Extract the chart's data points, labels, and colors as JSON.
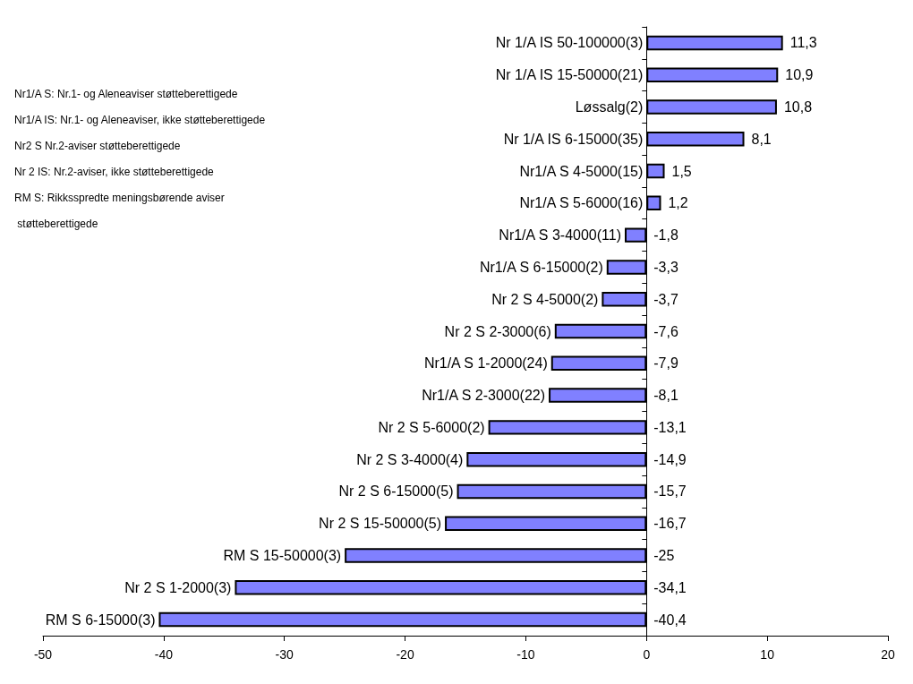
{
  "chart_data": {
    "type": "bar",
    "orientation": "horizontal",
    "categories": [
      "Nr 1/A IS 50-100000(3)",
      "Nr 1/A IS 15-50000(21)",
      "Løssalg(2)",
      "Nr 1/A IS 6-15000(35)",
      "Nr1/A S 4-5000(15)",
      "Nr1/A S 5-6000(16)",
      "Nr1/A S 3-4000(11)",
      "Nr1/A S 6-15000(2)",
      "Nr 2 S 4-5000(2)",
      "Nr 2 S 2-3000(6)",
      "Nr1/A S 1-2000(24)",
      "Nr1/A S 2-3000(22)",
      "Nr 2 S 5-6000(2)",
      "Nr 2 S 3-4000(4)",
      "Nr 2 S 6-15000(5)",
      "Nr 2 S 15-50000(5)",
      "RM S 15-50000(3)",
      "Nr 2 S 1-2000(3)",
      "RM S 6-15000(3)"
    ],
    "values": [
      11.3,
      10.9,
      10.8,
      8.1,
      1.5,
      1.2,
      -1.8,
      -3.3,
      -3.7,
      -7.6,
      -7.9,
      -8.1,
      -13.1,
      -14.9,
      -15.7,
      -16.7,
      -25,
      -34.1,
      -40.4
    ],
    "value_labels": [
      "11,3",
      "10,9",
      "10,8",
      "8,1",
      "1,5",
      "1,2",
      "-1,8",
      "-3,3",
      "-3,7",
      "-7,6",
      "-7,9",
      "-8,1",
      "-13,1",
      "-14,9",
      "-15,7",
      "-16,7",
      "-25",
      "-34,1",
      "-40,4"
    ],
    "color": "#8080ff",
    "xlim": [
      -50,
      20
    ],
    "xticks": [
      -50,
      -40,
      -30,
      -20,
      -10,
      0,
      10,
      20
    ],
    "grid": false,
    "annotations": [
      "Nr1/A S: Nr.1- og Aleneaviser støtteberettigede",
      "Nr1/A IS: Nr.1- og Aleneaviser, ikke støtteberettigede",
      "Nr2 S Nr.2-aviser støtteberettigede",
      "Nr 2 IS: Nr.2-aviser, ikke støtteberettigede",
      "RM S: Rikksspredte meningsbørende aviser støtteberettigede"
    ]
  }
}
